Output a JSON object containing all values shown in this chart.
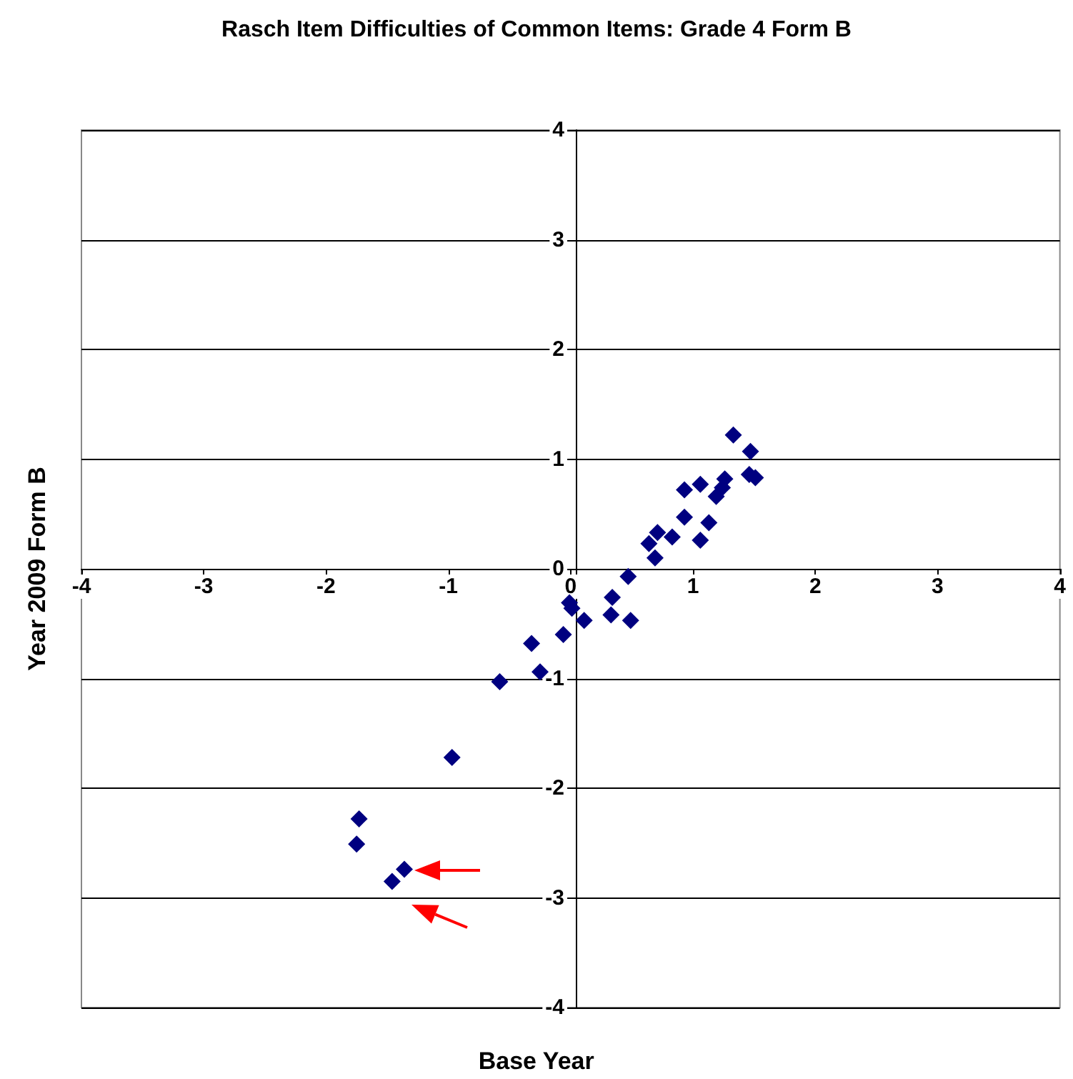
{
  "chart_data": {
    "type": "scatter",
    "title": "Rasch Item Difficulties of Common Items: Grade 4 Form B",
    "xlabel": "Base Year",
    "ylabel": "Year 2009 Form B",
    "xlim": [
      -4,
      4
    ],
    "xticks": [
      -4,
      -3,
      -2,
      -1,
      0,
      1,
      2,
      3,
      4
    ],
    "ylim": [
      -4,
      4
    ],
    "yticks": [
      -4,
      -3,
      -2,
      -1,
      0,
      1,
      2,
      3,
      4
    ],
    "grid": "y",
    "marker": "diamond",
    "series": [
      {
        "color": "#000080",
        "x": [
          1.33,
          1.47,
          1.46,
          1.51,
          1.26,
          1.24,
          1.19,
          0.93,
          1.06,
          0.93,
          1.06,
          1.13,
          0.64,
          0.71,
          0.83,
          0.69,
          0.47,
          0.34,
          0.33,
          0.49,
          -0.01,
          0.11,
          0.01,
          -0.06,
          -0.32,
          -0.25,
          -0.58,
          -0.97,
          -1.73,
          -1.75,
          -1.36,
          -1.46
        ],
        "values": [
          1.22,
          1.07,
          0.86,
          0.83,
          0.82,
          0.74,
          0.66,
          0.72,
          0.77,
          0.47,
          0.26,
          0.42,
          0.23,
          0.33,
          0.29,
          0.1,
          -0.07,
          -0.26,
          -0.42,
          -0.47,
          -0.31,
          -0.47,
          -0.36,
          -0.6,
          -0.68,
          -0.94,
          -1.03,
          -1.72,
          -2.28,
          -2.51,
          -2.74,
          -2.85
        ]
      }
    ]
  }
}
